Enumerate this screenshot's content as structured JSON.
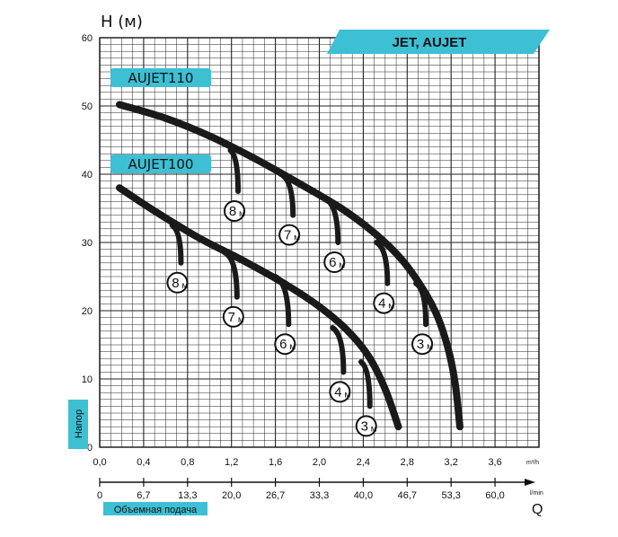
{
  "chart_data": {
    "type": "line",
    "header": "JET, AUJET",
    "y_axis": {
      "label": "H (м)",
      "side_label": "Напор",
      "range": [
        0,
        60
      ],
      "ticks": [
        "0",
        "10",
        "20",
        "30",
        "40",
        "50",
        "60"
      ]
    },
    "x_axis_m3h": {
      "unit": "m³/h",
      "range": [
        0,
        4.0
      ],
      "ticks": [
        "0,0",
        "0,4",
        "0,8",
        "1,2",
        "1,6",
        "2,0",
        "2,4",
        "2,8",
        "3,2",
        "3,6"
      ]
    },
    "x_axis_lmin": {
      "unit": "l/min",
      "range": [
        0,
        66.7
      ],
      "ticks": [
        "0",
        "6,7",
        "13,3",
        "20,0",
        "26,7",
        "33,3",
        "40,0",
        "46,7",
        "53,3",
        "60,0"
      ],
      "bottom_label": "Объемная подача",
      "q_label": "Q"
    },
    "series": [
      {
        "name": "AUJET110",
        "points": [
          [
            0.18,
            50.2
          ],
          [
            0.6,
            48.2
          ],
          [
            1.0,
            45.6
          ],
          [
            1.4,
            42.4
          ],
          [
            1.8,
            38.8
          ],
          [
            2.2,
            35.0
          ],
          [
            2.5,
            31.4
          ],
          [
            2.75,
            27.5
          ],
          [
            2.95,
            23.0
          ],
          [
            3.08,
            19.0
          ],
          [
            3.18,
            14.0
          ],
          [
            3.24,
            9.0
          ],
          [
            3.28,
            3.0
          ]
        ],
        "branches": [
          {
            "label": "8",
            "from": [
              1.19,
              43.5
            ],
            "to": [
              1.26,
              37.5
            ]
          },
          {
            "label": "7",
            "from": [
              1.65,
              40.0
            ],
            "to": [
              1.76,
              34.0
            ]
          },
          {
            "label": "6",
            "from": [
              2.05,
              36.5
            ],
            "to": [
              2.17,
              30.0
            ]
          },
          {
            "label": "4",
            "from": [
              2.52,
              30.0
            ],
            "to": [
              2.62,
              24.0
            ]
          },
          {
            "label": "3",
            "from": [
              2.88,
              24.0
            ],
            "to": [
              2.97,
              18.0
            ]
          }
        ]
      },
      {
        "name": "AUJET100",
        "points": [
          [
            0.18,
            38.0
          ],
          [
            0.5,
            34.6
          ],
          [
            0.9,
            30.7
          ],
          [
            1.3,
            27.4
          ],
          [
            1.7,
            23.8
          ],
          [
            2.0,
            20.6
          ],
          [
            2.25,
            17.2
          ],
          [
            2.45,
            13.3
          ],
          [
            2.6,
            8.5
          ],
          [
            2.72,
            3.0
          ]
        ],
        "branches": [
          {
            "label": "8",
            "from": [
              0.66,
              32.5
            ],
            "to": [
              0.74,
              27.0
            ]
          },
          {
            "label": "7",
            "from": [
              1.14,
              28.5
            ],
            "to": [
              1.25,
              22.0
            ]
          },
          {
            "label": "6",
            "from": [
              1.6,
              25.0
            ],
            "to": [
              1.72,
              18.0
            ]
          },
          {
            "label": "4",
            "from": [
              2.12,
              17.5
            ],
            "to": [
              2.22,
              11.0
            ]
          },
          {
            "label": "3",
            "from": [
              2.38,
              12.5
            ],
            "to": [
              2.46,
              6.0
            ]
          }
        ]
      }
    ],
    "depth_unit": "м",
    "grid": true,
    "colors": {
      "curve": "#1a1a1a",
      "accent": "#3dbfd4",
      "grid": "#222222"
    }
  }
}
